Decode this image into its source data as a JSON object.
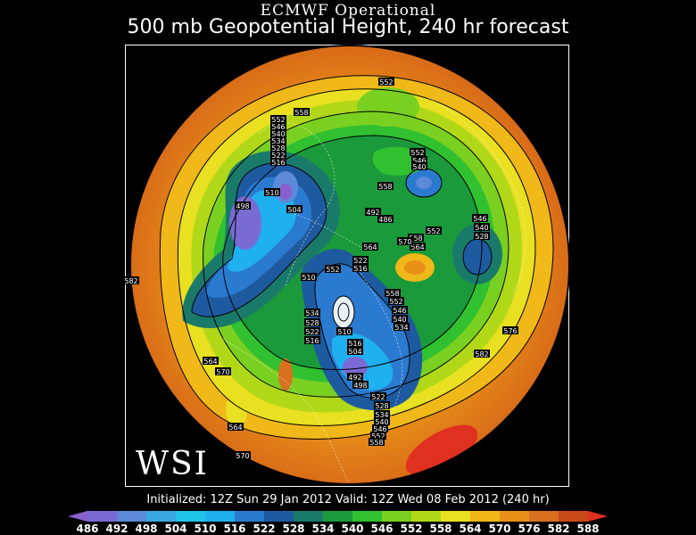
{
  "header": {
    "title_line1": "ECMWF Operational",
    "title_line2": "500 mb Geopotential Height, 240 hr forecast"
  },
  "footer": {
    "info": "Initialized: 12Z Sun 29 Jan 2012   Valid: 12Z Wed 08 Feb 2012 (240 hr)",
    "logo_text": "WSI"
  },
  "colorbar": {
    "levels": [
      "486",
      "492",
      "498",
      "504",
      "510",
      "516",
      "522",
      "528",
      "534",
      "540",
      "546",
      "552",
      "558",
      "564",
      "570",
      "576",
      "582",
      "588"
    ],
    "colors": [
      "#8a5fd0",
      "#7a6ad4",
      "#5c8ad8",
      "#3aa8e0",
      "#20c4e8",
      "#1fb0f0",
      "#2a7ad0",
      "#1e5aa0",
      "#1a7a6a",
      "#1a9a3a",
      "#30c030",
      "#7ad020",
      "#b0d818",
      "#e8e020",
      "#f0b818",
      "#e89018",
      "#d87020",
      "#c84a18",
      "#e03020"
    ]
  },
  "contour_labels": [
    "552",
    "558",
    "552",
    "546",
    "540",
    "552",
    "546",
    "540",
    "534",
    "528",
    "522",
    "516",
    "510",
    "504",
    "498",
    "492",
    "486",
    "558",
    "552",
    "546",
    "540",
    "528",
    "522",
    "516",
    "510",
    "552",
    "558",
    "564",
    "534",
    "528",
    "522",
    "516",
    "582",
    "564",
    "570",
    "576",
    "582",
    "564",
    "570",
    "558",
    "552",
    "546",
    "540",
    "534",
    "504",
    "498",
    "492",
    "510",
    "516",
    "522",
    "528",
    "534",
    "540",
    "546",
    "552",
    "558",
    "564",
    "570"
  ]
}
